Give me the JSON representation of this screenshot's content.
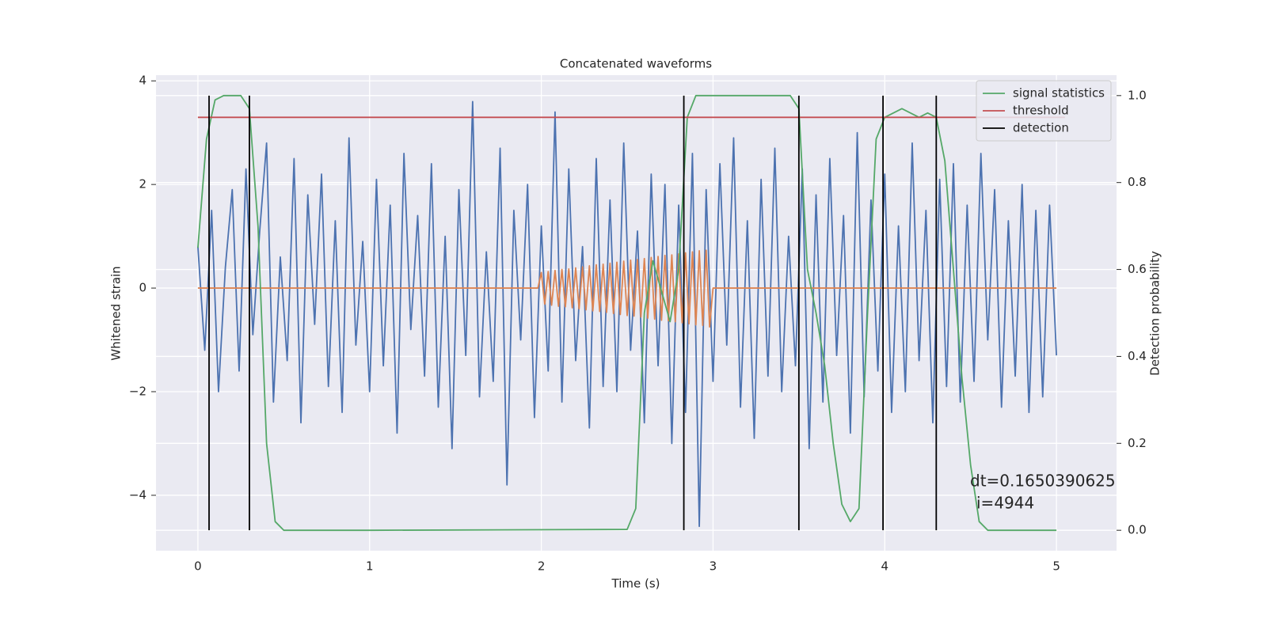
{
  "chart_data": {
    "type": "line",
    "title": "Concatenated waveforms",
    "xlabel": "Time (s)",
    "ylabel": "Whitened strain",
    "y2label": "Detection probability",
    "xlim": [
      -0.244,
      5.35
    ],
    "xticks": [
      0,
      1,
      2,
      3,
      4,
      5
    ],
    "ylim": [
      -5.07,
      4.11
    ],
    "yticks": [
      {
        "value": -4,
        "label": "−4"
      },
      {
        "value": -2,
        "label": "−2"
      },
      0,
      2,
      4
    ],
    "y2lim": [
      -0.047,
      1.047
    ],
    "y2ticks": [
      {
        "value": 0,
        "label": "0.0"
      },
      {
        "value": 0.2,
        "label": "0.2"
      },
      {
        "value": 0.4,
        "label": "0.4"
      },
      {
        "value": 0.6,
        "label": "0.6"
      },
      {
        "value": 0.8,
        "label": "0.8"
      },
      {
        "value": 1.0,
        "label": "1.0"
      }
    ],
    "grid": true,
    "legend": "upper right",
    "annotations": [
      "dt=0.1650390625",
      "i=4944"
    ],
    "series": [
      {
        "color": "#4c72b0",
        "x": [
          0,
          0.04,
          0.08,
          0.12,
          0.16,
          0.2,
          0.24,
          0.28,
          0.32,
          0.36,
          0.4,
          0.44,
          0.48,
          0.52,
          0.56,
          0.6,
          0.64,
          0.68,
          0.72,
          0.76,
          0.8,
          0.84,
          0.88,
          0.92,
          0.96,
          1,
          1.04,
          1.08,
          1.12,
          1.16,
          1.2,
          1.24,
          1.28,
          1.32,
          1.36,
          1.4,
          1.44,
          1.48,
          1.52,
          1.56,
          1.6,
          1.64,
          1.68,
          1.72,
          1.76,
          1.8,
          1.84,
          1.88,
          1.92,
          1.96,
          2,
          2.04,
          2.08,
          2.12,
          2.16,
          2.2,
          2.24,
          2.28,
          2.32,
          2.36,
          2.4,
          2.44,
          2.48,
          2.52,
          2.56,
          2.6,
          2.64,
          2.68,
          2.72,
          2.76,
          2.8,
          2.84,
          2.88,
          2.92,
          2.96,
          3,
          3.04,
          3.08,
          3.12,
          3.16,
          3.2,
          3.24,
          3.28,
          3.32,
          3.36,
          3.4,
          3.44,
          3.48,
          3.52,
          3.56,
          3.6,
          3.64,
          3.68,
          3.72,
          3.76,
          3.8,
          3.84,
          3.88,
          3.92,
          3.96,
          4,
          4.04,
          4.08,
          4.12,
          4.16,
          4.2,
          4.24,
          4.28,
          4.32,
          4.36,
          4.4,
          4.44,
          4.48,
          4.52,
          4.56,
          4.6,
          4.64,
          4.68,
          4.72,
          4.76,
          4.8,
          4.84,
          4.88,
          4.92,
          4.96,
          5
        ],
        "values": [
          0.8,
          -1.2,
          1.5,
          -2.0,
          0.4,
          1.9,
          -1.6,
          2.3,
          -0.9,
          1.1,
          2.8,
          -2.2,
          0.6,
          -1.4,
          2.5,
          -2.6,
          1.8,
          -0.7,
          2.2,
          -1.9,
          1.3,
          -2.4,
          2.9,
          -1.1,
          0.9,
          -2.0,
          2.1,
          -1.5,
          1.6,
          -2.8,
          2.6,
          -0.8,
          1.4,
          -1.7,
          2.4,
          -2.3,
          1.0,
          -3.1,
          1.9,
          -1.3,
          3.6,
          -2.1,
          0.7,
          -1.8,
          2.7,
          -3.8,
          1.5,
          -1.0,
          2.0,
          -2.5,
          1.2,
          -1.6,
          3.4,
          -2.2,
          2.3,
          -1.4,
          0.8,
          -2.7,
          2.5,
          -1.9,
          1.7,
          -2.0,
          2.8,
          -1.2,
          1.1,
          -2.6,
          2.2,
          -1.5,
          2.0,
          -3.0,
          1.6,
          -2.4,
          2.6,
          -4.6,
          1.9,
          -1.8,
          2.4,
          -1.1,
          2.9,
          -2.3,
          1.3,
          -2.9,
          2.1,
          -1.7,
          2.7,
          -2.0,
          1.0,
          -1.5,
          2.3,
          -3.1,
          1.8,
          -2.2,
          2.5,
          -1.3,
          1.4,
          -2.8,
          3.0,
          -2.1,
          1.7,
          -1.6,
          2.2,
          -2.4,
          1.2,
          -2.0,
          2.8,
          -1.4,
          1.5,
          -2.6,
          2.1,
          -1.9,
          2.4,
          -2.2,
          1.6,
          -1.8,
          2.6,
          -1.0,
          1.9,
          -2.3,
          1.3,
          -1.7,
          2.0,
          -2.4,
          1.5,
          -2.1,
          1.6,
          -1.3
        ]
      },
      {
        "color": "#dd8452",
        "x": [
          0,
          1.98,
          2,
          2.02,
          2.04,
          2.06,
          2.08,
          2.1,
          2.12,
          2.14,
          2.16,
          2.18,
          2.2,
          2.22,
          2.24,
          2.26,
          2.28,
          2.3,
          2.32,
          2.34,
          2.36,
          2.38,
          2.4,
          2.42,
          2.44,
          2.46,
          2.48,
          2.5,
          2.52,
          2.54,
          2.56,
          2.58,
          2.6,
          2.62,
          2.64,
          2.66,
          2.68,
          2.7,
          2.72,
          2.74,
          2.76,
          2.78,
          2.8,
          2.82,
          2.84,
          2.86,
          2.88,
          2.9,
          2.92,
          2.94,
          2.96,
          2.98,
          3,
          5
        ],
        "values": [
          0,
          0,
          0.3,
          -0.31,
          0.32,
          -0.33,
          0.34,
          -0.35,
          0.36,
          -0.36,
          0.37,
          -0.38,
          0.39,
          -0.4,
          0.41,
          -0.42,
          0.43,
          -0.44,
          0.45,
          -0.45,
          0.46,
          -0.47,
          0.48,
          -0.49,
          0.5,
          -0.51,
          0.52,
          -0.53,
          0.54,
          -0.54,
          0.55,
          -0.56,
          0.57,
          -0.58,
          0.59,
          -0.6,
          0.61,
          -0.62,
          0.63,
          -0.63,
          0.64,
          -0.65,
          0.66,
          -0.67,
          0.68,
          -0.69,
          0.7,
          -0.71,
          0.72,
          -0.72,
          0.73,
          -0.75,
          0,
          0
        ]
      },
      {
        "name": "signal statistics",
        "color": "#55a868",
        "axis": "y2",
        "x": [
          0,
          0.05,
          0.1,
          0.15,
          0.25,
          0.3,
          0.35,
          0.4,
          0.45,
          0.5,
          1,
          2.5,
          2.55,
          2.6,
          2.65,
          2.7,
          2.75,
          2.8,
          2.85,
          2.9,
          3.45,
          3.5,
          3.55,
          3.6,
          3.65,
          3.7,
          3.75,
          3.8,
          3.85,
          3.9,
          3.95,
          4,
          4.1,
          4.2,
          4.25,
          4.3,
          4.35,
          4.4,
          4.45,
          4.5,
          4.55,
          4.6,
          5
        ],
        "values": [
          0.65,
          0.9,
          0.99,
          1.0,
          1.0,
          0.97,
          0.7,
          0.2,
          0.02,
          0,
          0,
          0.002,
          0.05,
          0.5,
          0.62,
          0.55,
          0.48,
          0.6,
          0.95,
          1.0,
          1.0,
          0.97,
          0.6,
          0.5,
          0.38,
          0.2,
          0.06,
          0.02,
          0.05,
          0.5,
          0.9,
          0.95,
          0.97,
          0.95,
          0.96,
          0.95,
          0.85,
          0.6,
          0.35,
          0.15,
          0.02,
          0,
          0
        ]
      },
      {
        "name": "threshold",
        "color": "#c44e52",
        "axis": "y2",
        "x": [
          0,
          5.05
        ],
        "values": [
          0.95,
          0.95
        ]
      },
      {
        "name": "detection",
        "color": "#000000",
        "axis": "y2",
        "type": "vlines",
        "ymin": 0,
        "ymax": 1,
        "x": [
          0.065,
          0.3,
          2.83,
          3.5,
          3.99,
          4.3
        ]
      }
    ]
  }
}
